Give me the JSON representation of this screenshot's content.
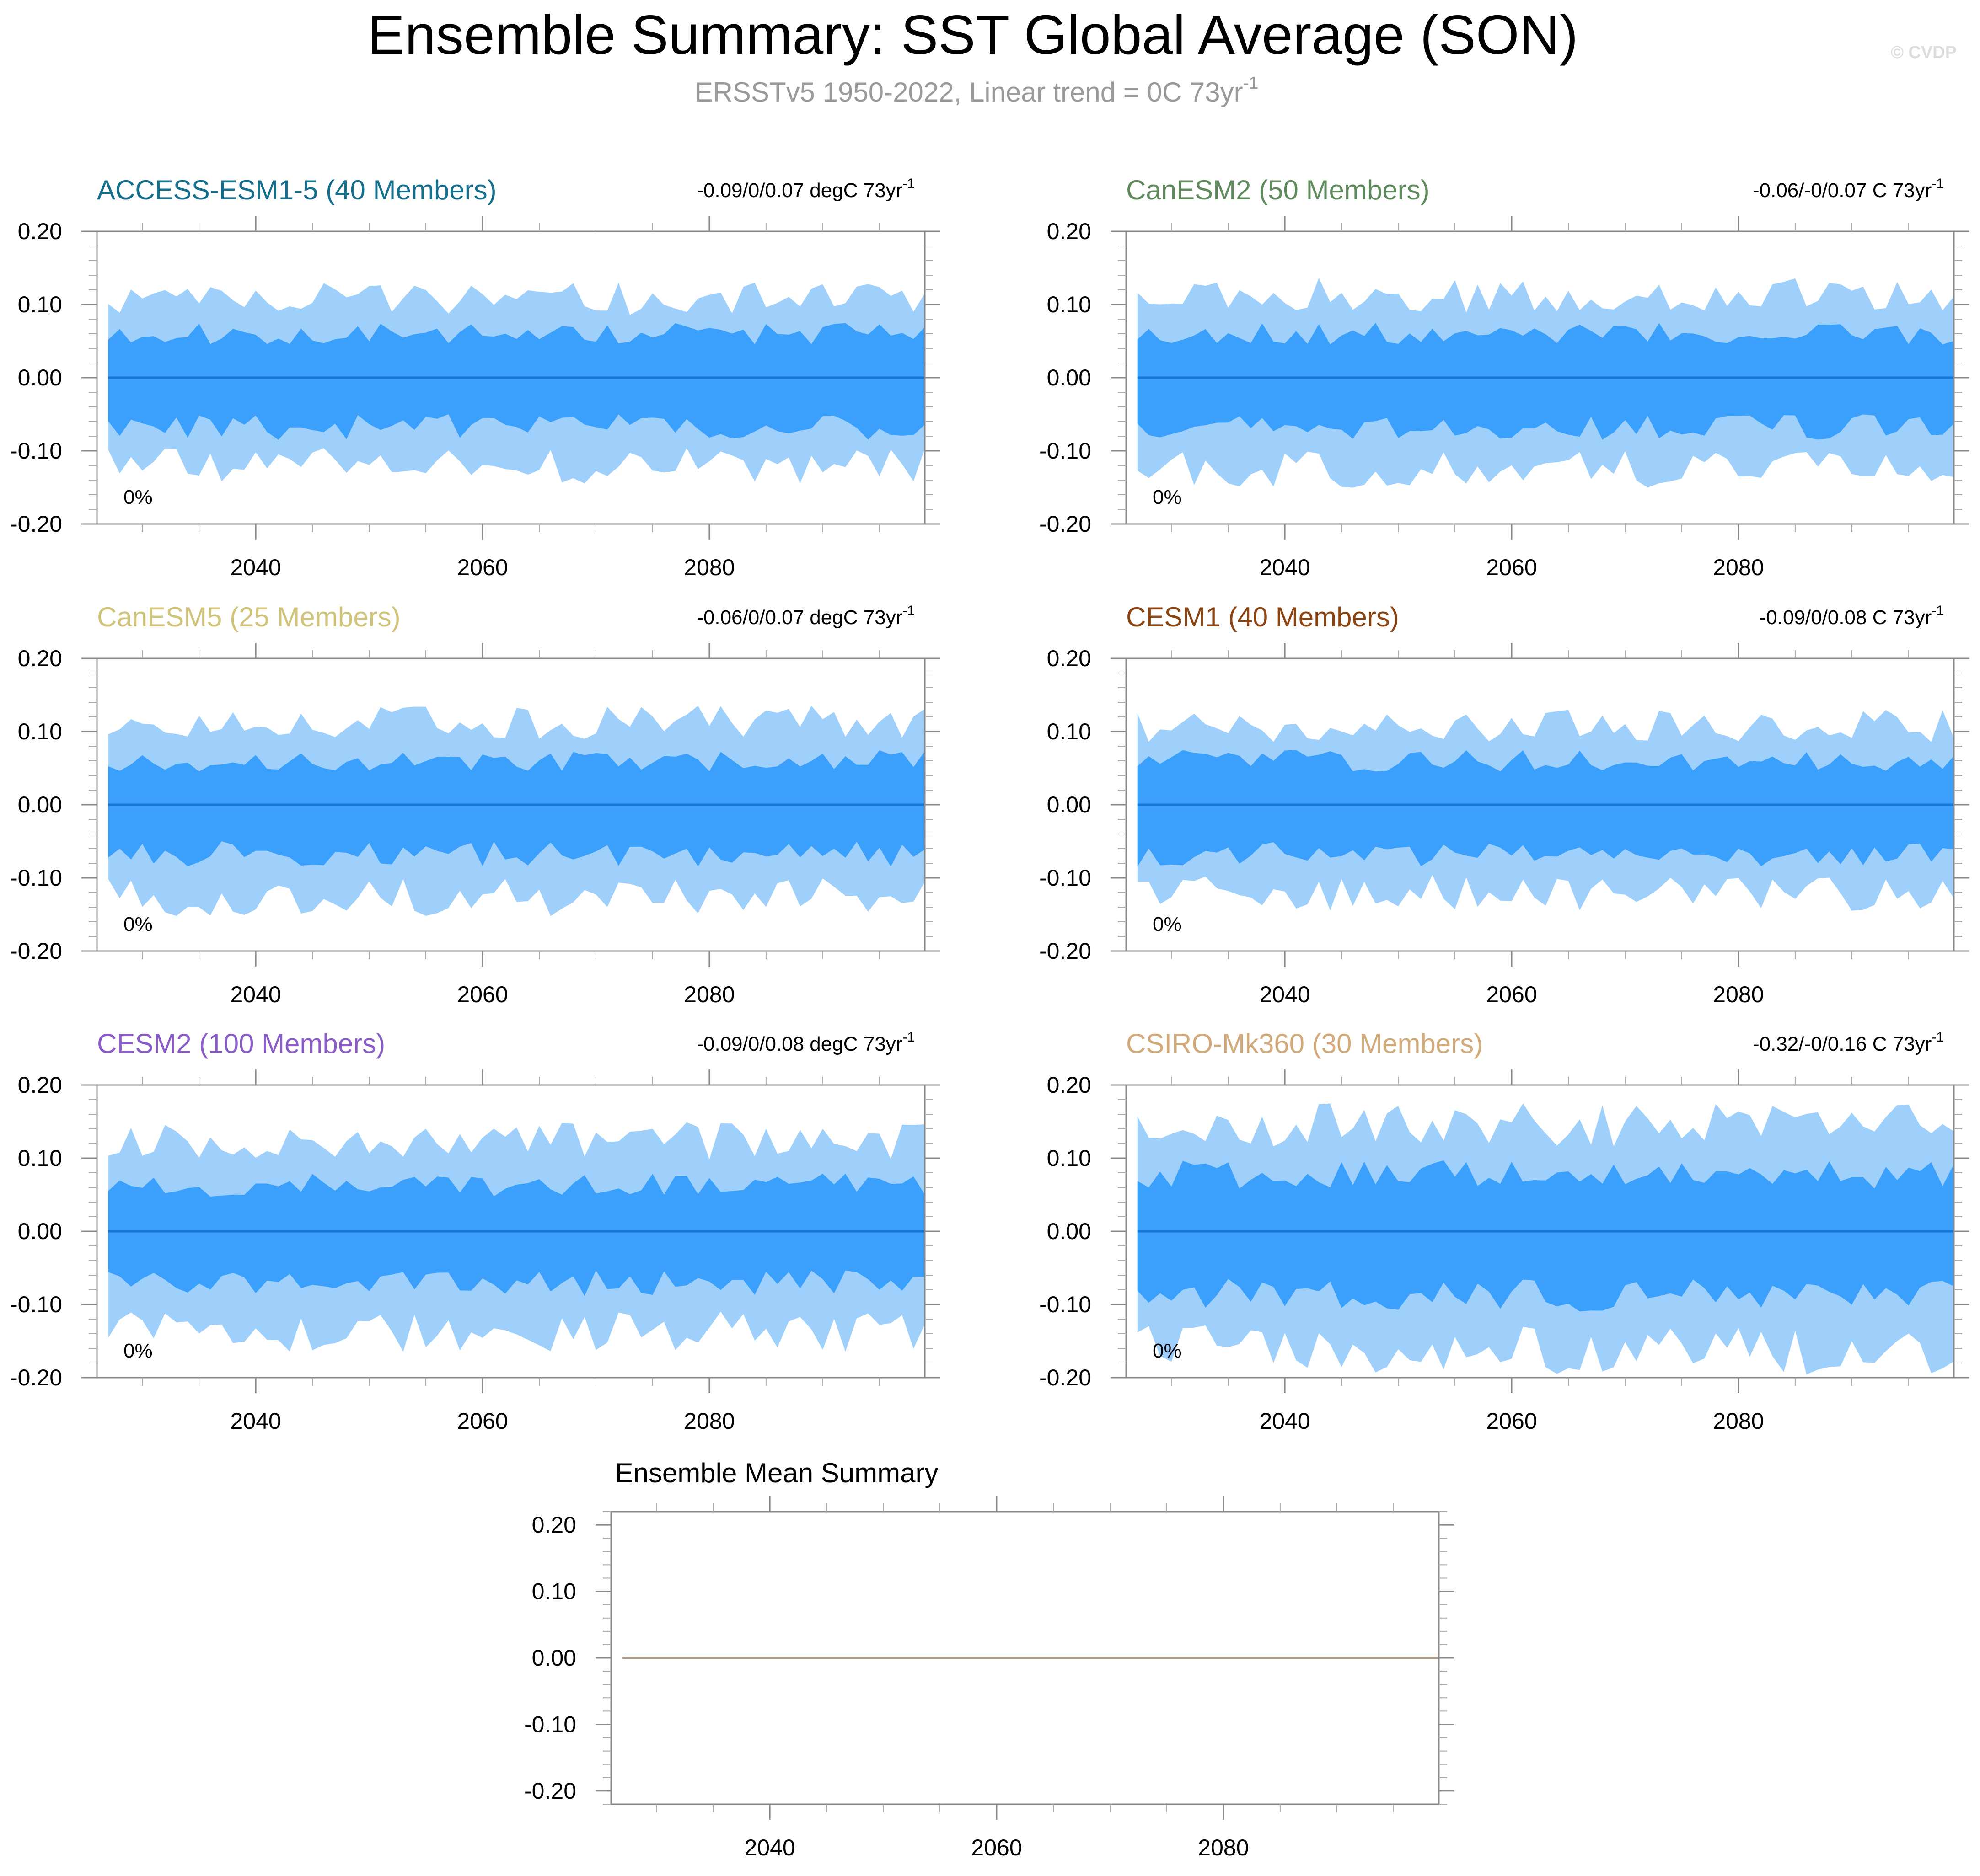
{
  "header": {
    "title": "Ensemble Summary: SST Global Average (SON)",
    "subtitle": "ERSSTv5 1950-2022, Linear trend = 0C 73yr",
    "subtitle_superscript": "-1",
    "watermark": "© CVDP"
  },
  "colors": {
    "band_outer": "#9fd0fb",
    "band_inner": "#3aa0fc",
    "mean_line": "#1a73d6",
    "summary_line": "#a89a8c",
    "frame": "#000000",
    "minor_tick": "#aaaaaa"
  },
  "chart_data": [
    {
      "type": "area",
      "title": "ACCESS-ESM1-5 (40 Members)",
      "title_color": "#156e8c",
      "trend_text": "-0.09/0/0.07 degC 73yr",
      "trend_superscript": "-1",
      "percent_label": "0%",
      "xlim": [
        2026,
        2099
      ],
      "ylim": [
        -0.2,
        0.2
      ],
      "x_ticks": [
        2040,
        2060,
        2080
      ],
      "x_tick_labels": [
        "2040",
        "2060",
        "2080"
      ],
      "y_ticks": [
        0.2,
        0.1,
        0.0,
        -0.1,
        -0.2
      ],
      "y_tick_labels": [
        "0.20",
        "0.10",
        "0.00",
        "-0.10",
        "-0.20"
      ],
      "x_start": 2027,
      "x_end": 2099,
      "mean": 0.0,
      "series_shape": {
        "outer_scale": 1.0,
        "inner_scale": 1.0,
        "seed": 11
      }
    },
    {
      "type": "area",
      "title": "CanESM2 (50 Members)",
      "title_color": "#5e8a5e",
      "trend_text": "-0.06/-0/0.07 C 73yr",
      "trend_superscript": "-1",
      "percent_label": "0%",
      "xlim": [
        2026,
        2099
      ],
      "ylim": [
        -0.2,
        0.2
      ],
      "x_ticks": [
        2040,
        2060,
        2080
      ],
      "x_tick_labels": [
        "2040",
        "2060",
        "2080"
      ],
      "y_ticks": [
        0.2,
        0.1,
        0.0,
        -0.1,
        -0.2
      ],
      "y_tick_labels": [
        "0.20",
        "0.10",
        "0.00",
        "-0.10",
        "-0.20"
      ],
      "x_start": 2027,
      "x_end": 2099,
      "mean": 0.0,
      "series_shape": {
        "outer_scale": 1.05,
        "inner_scale": 1.0,
        "seed": 23
      }
    },
    {
      "type": "area",
      "title": "CanESM5 (25 Members)",
      "title_color": "#cfc47a",
      "trend_text": "-0.06/0/0.07 degC 73yr",
      "trend_superscript": "-1",
      "percent_label": "0%",
      "xlim": [
        2026,
        2099
      ],
      "ylim": [
        -0.2,
        0.2
      ],
      "x_ticks": [
        2040,
        2060,
        2080
      ],
      "x_tick_labels": [
        "2040",
        "2060",
        "2080"
      ],
      "y_ticks": [
        0.2,
        0.1,
        0.0,
        -0.1,
        -0.2
      ],
      "y_tick_labels": [
        "0.20",
        "0.10",
        "0.00",
        "-0.10",
        "-0.20"
      ],
      "x_start": 2027,
      "x_end": 2099,
      "mean": 0.0,
      "series_shape": {
        "outer_scale": 1.05,
        "inner_scale": 1.0,
        "seed": 37
      }
    },
    {
      "type": "area",
      "title": "CESM1 (40 Members)",
      "title_color": "#8b4513",
      "trend_text": "-0.09/0/0.08 C 73yr",
      "trend_superscript": "-1",
      "percent_label": "0%",
      "xlim": [
        2026,
        2099
      ],
      "ylim": [
        -0.2,
        0.2
      ],
      "x_ticks": [
        2040,
        2060,
        2080
      ],
      "x_tick_labels": [
        "2040",
        "2060",
        "2080"
      ],
      "y_ticks": [
        0.2,
        0.1,
        0.0,
        -0.1,
        -0.2
      ],
      "y_tick_labels": [
        "0.20",
        "0.10",
        "0.00",
        "-0.10",
        "-0.20"
      ],
      "x_start": 2027,
      "x_end": 2099,
      "mean": 0.0,
      "series_shape": {
        "outer_scale": 1.0,
        "inner_scale": 1.0,
        "seed": 41
      }
    },
    {
      "type": "area",
      "title": "CESM2 (100 Members)",
      "title_color": "#8a5cc7",
      "trend_text": "-0.09/0/0.08 degC 73yr",
      "trend_superscript": "-1",
      "percent_label": "0%",
      "xlim": [
        2026,
        2099
      ],
      "ylim": [
        -0.2,
        0.2
      ],
      "x_ticks": [
        2040,
        2060,
        2080
      ],
      "x_tick_labels": [
        "2040",
        "2060",
        "2080"
      ],
      "y_ticks": [
        0.2,
        0.1,
        0.0,
        -0.1,
        -0.2
      ],
      "y_tick_labels": [
        "0.20",
        "0.10",
        "0.00",
        "-0.10",
        "-0.20"
      ],
      "x_start": 2027,
      "x_end": 2099,
      "mean": 0.0,
      "series_shape": {
        "outer_scale": 1.15,
        "inner_scale": 1.05,
        "seed": 53
      }
    },
    {
      "type": "area",
      "title": "CSIRO-Mk360 (30 Members)",
      "title_color": "#d2aa7a",
      "trend_text": "-0.32/-0/0.16 C 73yr",
      "trend_superscript": "-1",
      "percent_label": "0%",
      "xlim": [
        2026,
        2099
      ],
      "ylim": [
        -0.2,
        0.2
      ],
      "x_ticks": [
        2040,
        2060,
        2080
      ],
      "x_tick_labels": [
        "2040",
        "2060",
        "2080"
      ],
      "y_ticks": [
        0.2,
        0.1,
        0.0,
        -0.1,
        -0.2
      ],
      "y_tick_labels": [
        "0.20",
        "0.10",
        "0.00",
        "-0.10",
        "-0.20"
      ],
      "x_start": 2027,
      "x_end": 2099,
      "mean": 0.0,
      "series_shape": {
        "outer_scale": 1.35,
        "inner_scale": 1.3,
        "seed": 67
      }
    },
    {
      "type": "line",
      "title": "Ensemble Mean Summary",
      "title_color": "#000000",
      "xlim": [
        2026,
        2099
      ],
      "ylim": [
        -0.22,
        0.22
      ],
      "x_ticks": [
        2040,
        2060,
        2080
      ],
      "x_tick_labels": [
        "2040",
        "2060",
        "2080"
      ],
      "y_ticks": [
        0.2,
        0.1,
        0.0,
        -0.1,
        -0.2
      ],
      "y_tick_labels": [
        "0.20",
        "0.10",
        "0.00",
        "-0.10",
        "-0.20"
      ],
      "series": [
        {
          "x": [
            2027,
            2099
          ],
          "y": [
            0.0,
            0.0
          ]
        }
      ]
    }
  ]
}
